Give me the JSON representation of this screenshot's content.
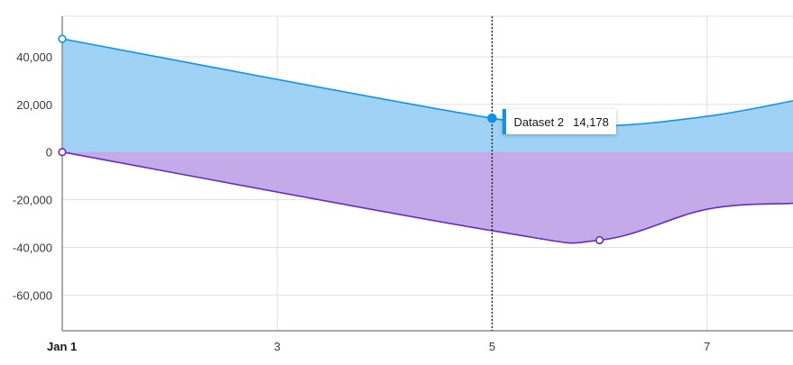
{
  "chart_data": {
    "type": "area",
    "x_axis": {
      "type": "time",
      "tick_labels": [
        "Jan 1",
        "3",
        "5",
        "7"
      ],
      "tick_values": [
        1,
        3,
        5,
        7
      ],
      "range": [
        1,
        7.8
      ]
    },
    "y_axis": {
      "ylim": [
        -75000,
        57000
      ],
      "tick_values": [
        40000,
        20000,
        0,
        -20000,
        -40000,
        -60000
      ],
      "tick_labels": [
        "40,000",
        "20,000",
        "0",
        "-20,000",
        "-40,000",
        "-60,000"
      ]
    },
    "grid": true,
    "series": [
      {
        "name": "Dataset 2",
        "color": "#1192e8",
        "fill": "#9fd2f5",
        "points": [
          {
            "x": 1,
            "y": 47500
          },
          {
            "x": 5,
            "y": 14178
          },
          {
            "x": 6,
            "y": 11000
          },
          {
            "x": 7,
            "y": 15000
          },
          {
            "x": 7.8,
            "y": 21500
          }
        ]
      },
      {
        "color": "#6929c4",
        "fill": "#c4aae8",
        "points": [
          {
            "x": 1,
            "y": 0
          },
          {
            "x": 5,
            "y": -33000
          },
          {
            "x": 6,
            "y": -37000
          },
          {
            "x": 7,
            "y": -24000
          },
          {
            "x": 7.8,
            "y": -21500
          }
        ]
      }
    ],
    "hover": {
      "x": 5,
      "series_name": "Dataset 2",
      "value_label": "14,178",
      "color": "#1192e8"
    },
    "markers": [
      {
        "series": 0,
        "x": 1,
        "style": "hollow"
      },
      {
        "series": 0,
        "x": 5,
        "style": "filled"
      },
      {
        "series": 1,
        "x": 1,
        "style": "hollow"
      },
      {
        "series": 1,
        "x": 6,
        "style": "hollow"
      }
    ]
  }
}
